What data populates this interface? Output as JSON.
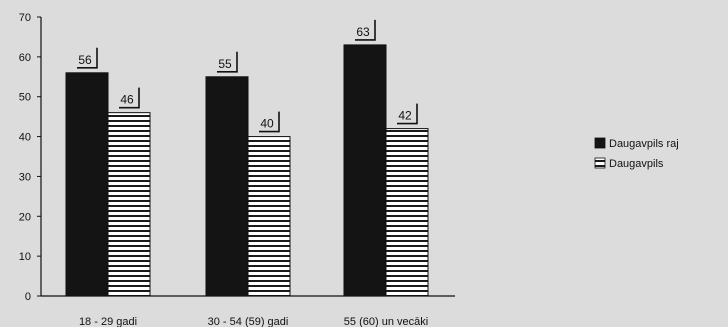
{
  "chart_data": {
    "type": "bar",
    "categories": [
      "18 - 29 gadi",
      "30 - 54 (59) gadi",
      "55 (60) un vecāki"
    ],
    "series": [
      {
        "name": "Daugavpils raj",
        "values": [
          56,
          55,
          63
        ],
        "pattern": "solid",
        "color": "#141414"
      },
      {
        "name": "Daugavpils",
        "values": [
          46,
          40,
          42
        ],
        "pattern": "horizontal-stripes",
        "color": "#ffffff"
      }
    ],
    "ylim": [
      0,
      70
    ],
    "yticks": [
      0,
      10,
      20,
      30,
      40,
      50,
      60,
      70
    ],
    "grid": false,
    "legend_position": "right",
    "data_labels": true,
    "title": "",
    "xlabel": "",
    "ylabel": ""
  }
}
